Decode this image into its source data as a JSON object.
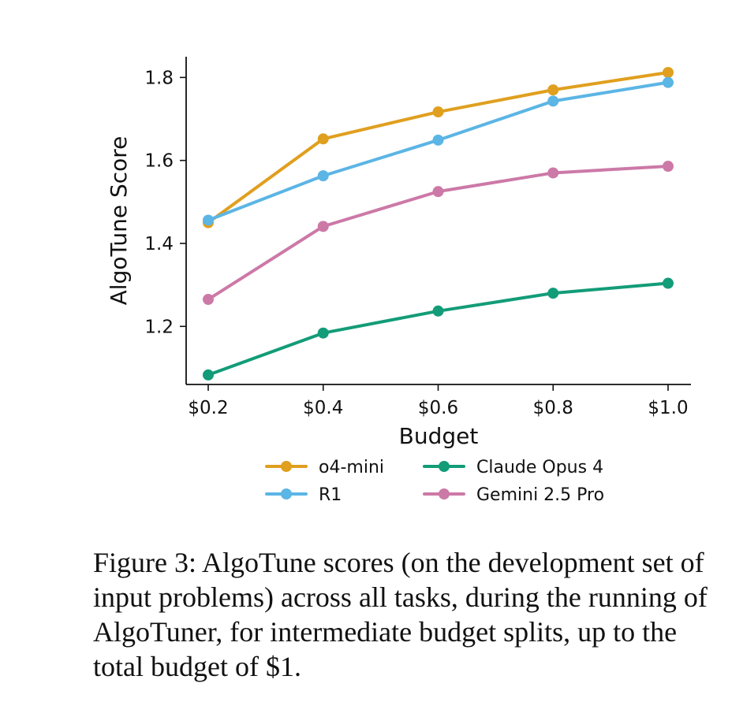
{
  "chart_data": {
    "type": "line",
    "title": "",
    "xlabel": "Budget",
    "ylabel": "AlgoTune Score",
    "categories": [
      "$0.2",
      "$0.4",
      "$0.6",
      "$0.8",
      "$1.0"
    ],
    "x": [
      0.2,
      0.4,
      0.6,
      0.8,
      1.0
    ],
    "xlim": [
      0.16,
      1.04
    ],
    "ylim": [
      1.06,
      1.85
    ],
    "yticks": [
      1.2,
      1.4,
      1.6,
      1.8
    ],
    "ytick_labels": [
      "1.2",
      "1.4",
      "1.6",
      "1.8"
    ],
    "grid": false,
    "legend_position": "bottom",
    "series": [
      {
        "name": "o4-mini",
        "color": "#E09F1F",
        "values": [
          1.45,
          1.652,
          1.717,
          1.77,
          1.812
        ]
      },
      {
        "name": "R1",
        "color": "#5BB5E5",
        "values": [
          1.456,
          1.563,
          1.649,
          1.743,
          1.788
        ]
      },
      {
        "name": "Claude Opus 4",
        "color": "#129C78",
        "values": [
          1.083,
          1.184,
          1.237,
          1.28,
          1.304
        ]
      },
      {
        "name": "Gemini 2.5 Pro",
        "color": "#CC79A7",
        "values": [
          1.265,
          1.441,
          1.525,
          1.57,
          1.586
        ]
      }
    ]
  },
  "caption": "Figure 3: AlgoTune scores (on the development set of input problems) across all tasks, during the running of AlgoTuner, for intermediate budget splits, up to the total budget of $1."
}
